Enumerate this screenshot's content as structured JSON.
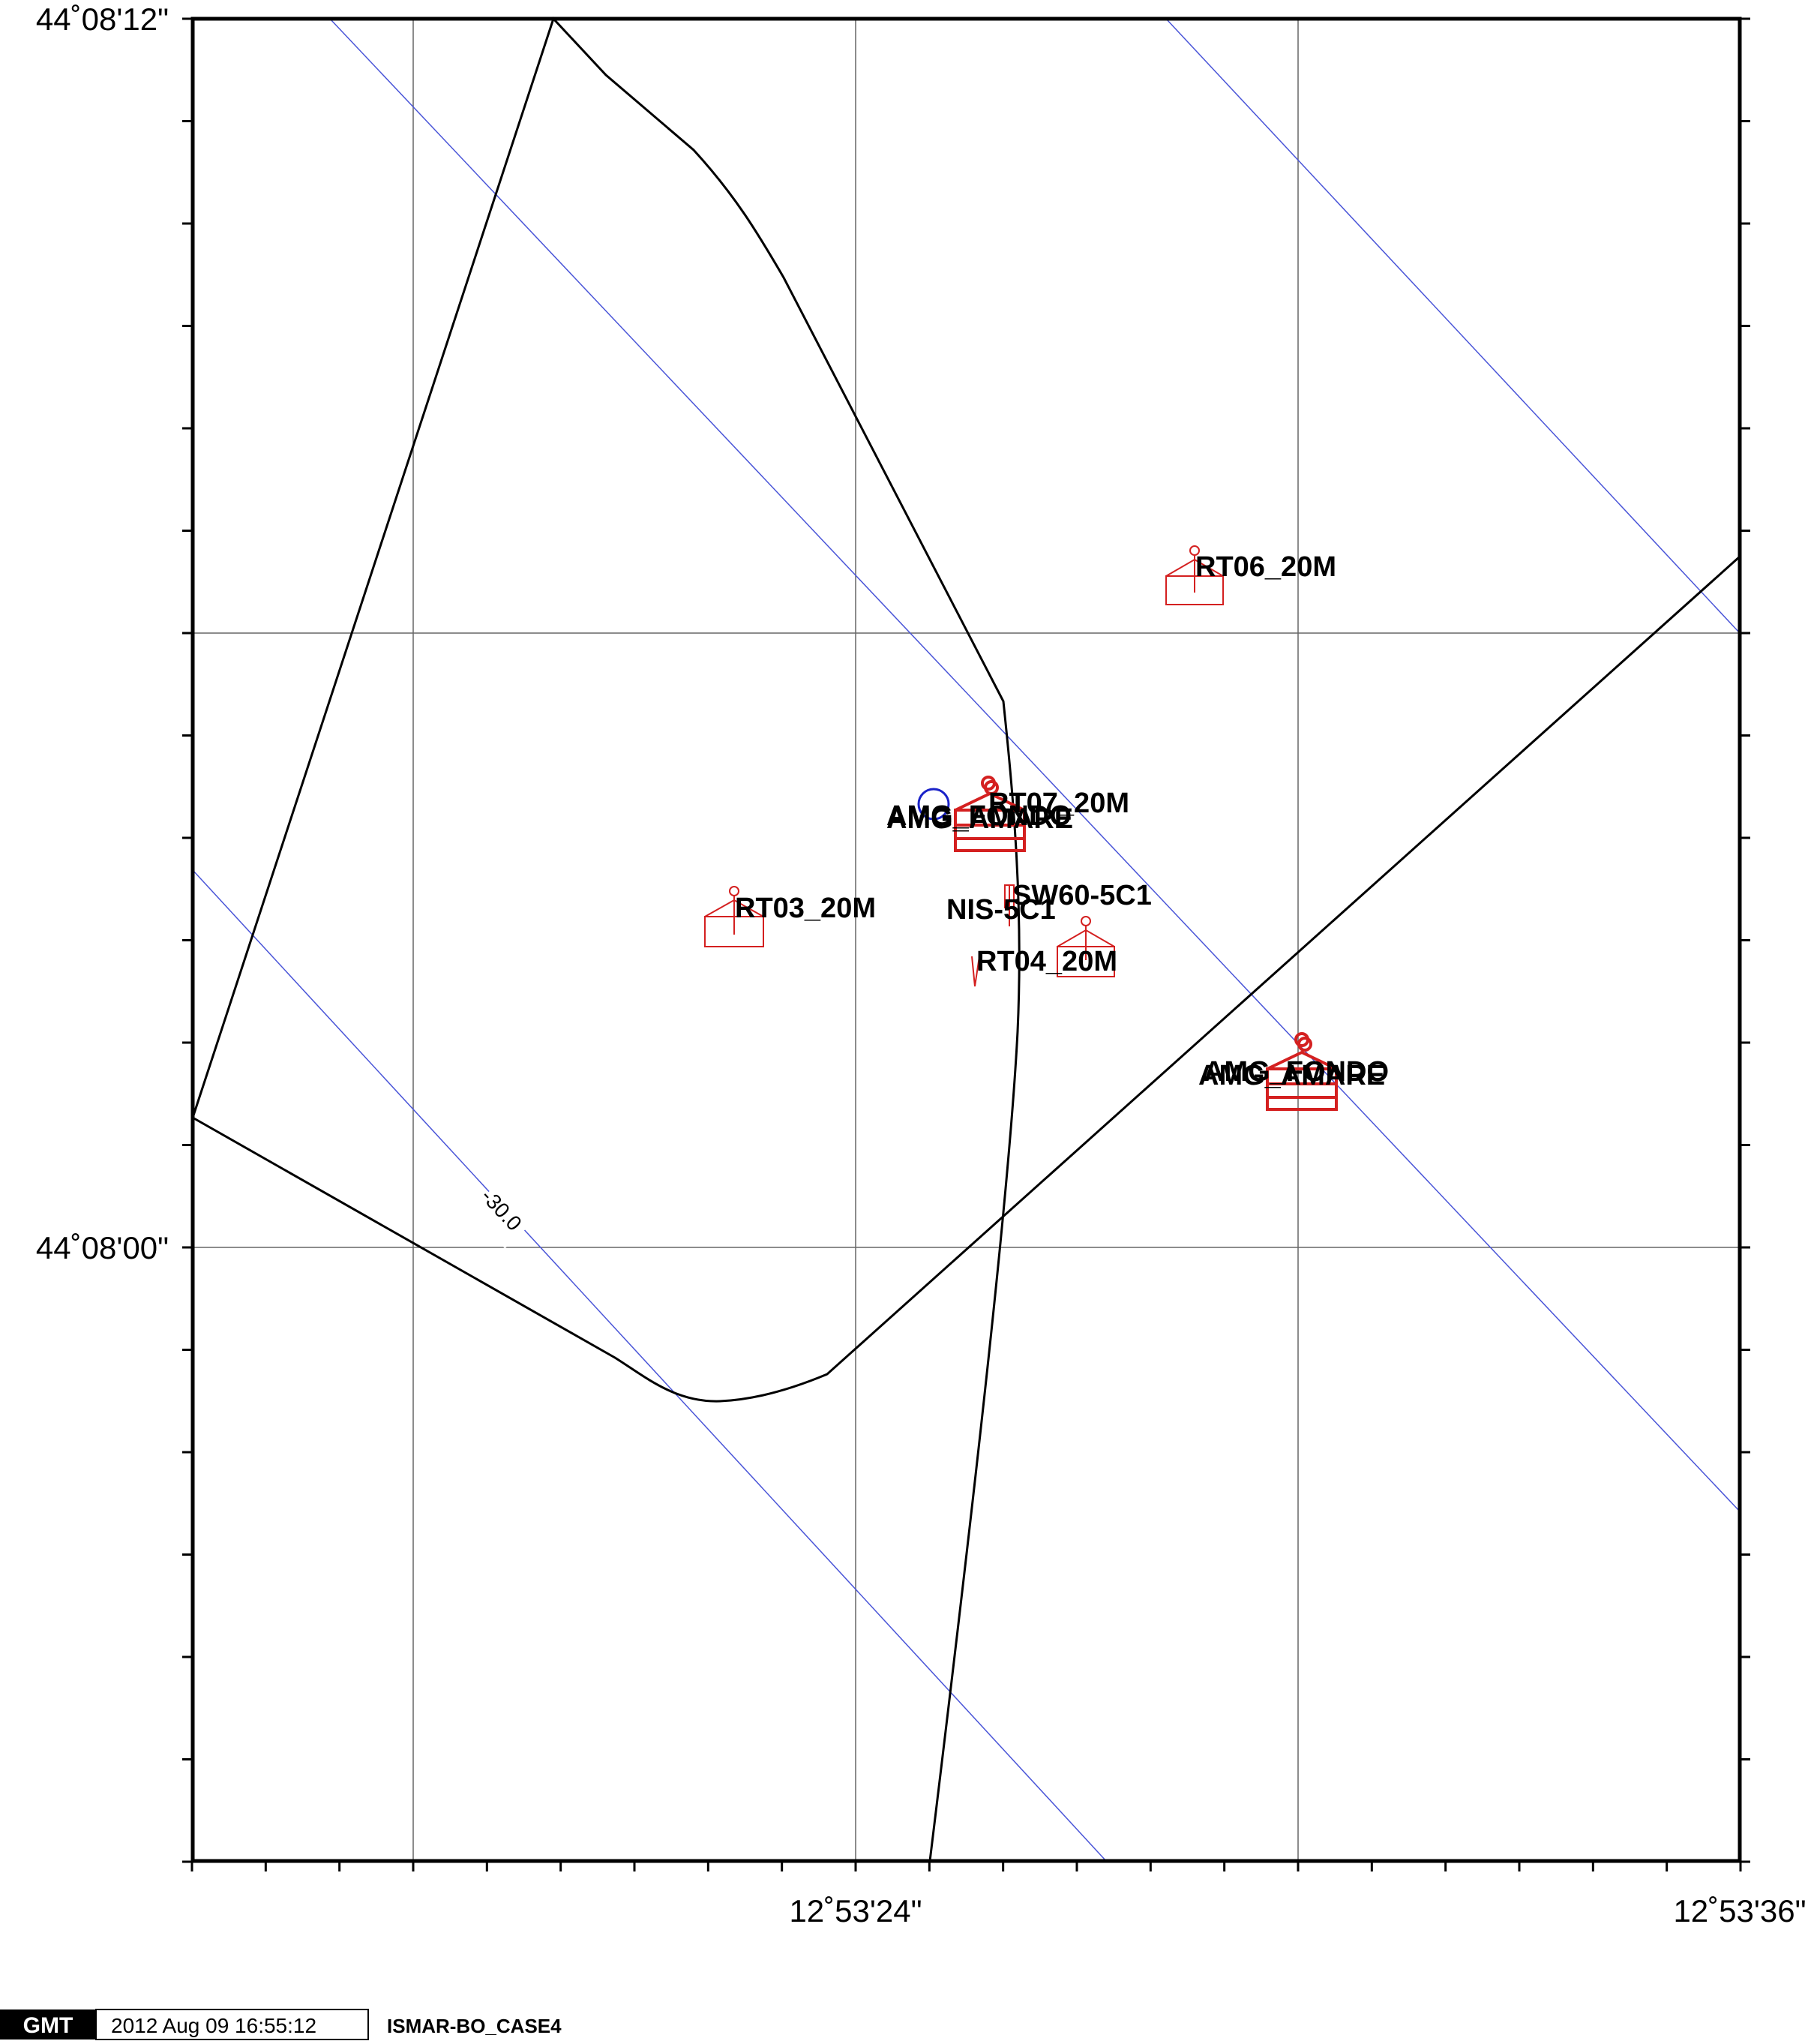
{
  "map": {
    "lat_labels": {
      "top": "44˚08'12\"",
      "middle": "44˚08'00\""
    },
    "lon_labels": {
      "middle": "12˚53'24\"",
      "right": "12˚53'36\""
    },
    "contour_label": "-30.0",
    "colors": {
      "frame": "#000000",
      "grid": "#666666",
      "contour": "#4a55d8",
      "station": "#d42020",
      "circle": "#1a22c8"
    }
  },
  "stations": [
    {
      "name": "RT06_20M"
    },
    {
      "name": "AMG_FONDO"
    },
    {
      "name": "AMG_AMARE"
    },
    {
      "name": "RT07_20M"
    },
    {
      "name": "RT03_20M"
    },
    {
      "name": "SW60-5C1"
    },
    {
      "name": "NIS-5C1"
    },
    {
      "name": "RT04_20M"
    },
    {
      "name": "AMG_FONDO"
    },
    {
      "name": "AMG_AMARE"
    }
  ],
  "footer": {
    "logo": "GMT",
    "timestamp": "2012 Aug 09 16:55:12",
    "case_name": "ISMAR-BO_CASE4"
  }
}
